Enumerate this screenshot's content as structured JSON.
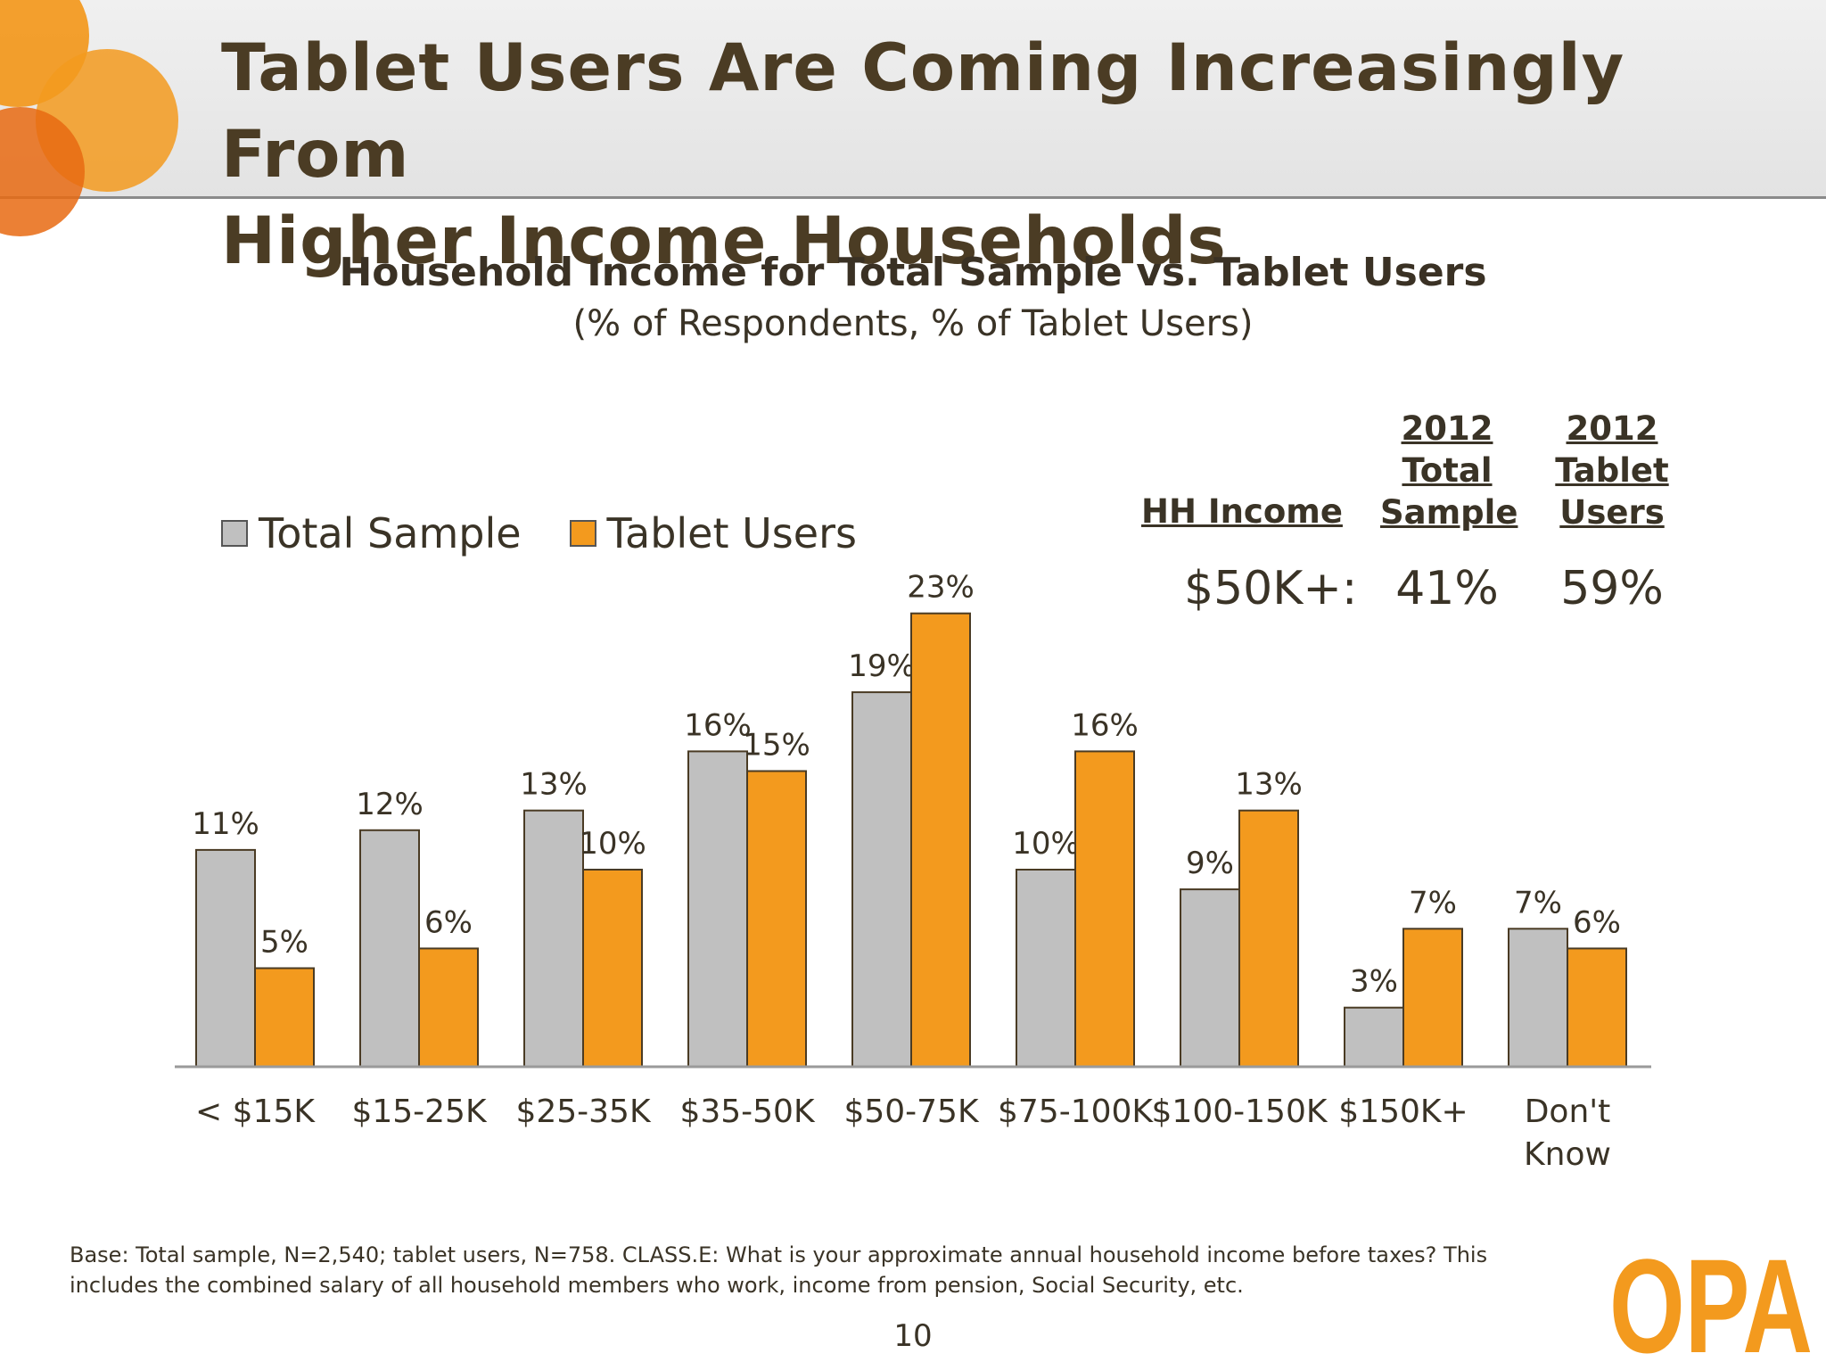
{
  "slide": {
    "title_line1": "Tablet Users Are Coming Increasingly From",
    "title_line2": "Higher Income Households",
    "page_number": "10"
  },
  "hh_table": {
    "header_label": "HH Income",
    "col_total": [
      "2012",
      "Total",
      "Sample"
    ],
    "col_tablet": [
      "2012",
      "Tablet",
      "Users"
    ],
    "row_label": "$50K+:",
    "row_total": "41%",
    "row_tablet": "59%"
  },
  "footnote": {
    "line1": "Base:  Total sample, N=2,540; tablet users, N=758.  CLASS.E:  What is your approximate annual household income before taxes?  This",
    "line2": "includes the combined salary of all household members who work, income from pension, Social Security, etc."
  },
  "logo": {
    "text": "OPA"
  },
  "colors": {
    "total_sample": "#c0c0c0",
    "tablet_users": "#f39a1e",
    "bar_outline": "#4a3b24",
    "axis": "#9a9a9a"
  },
  "chart_data": {
    "type": "bar",
    "title": "Household Income for Total Sample vs. Tablet Users",
    "subtitle": "(% of Respondents, % of Tablet Users)",
    "categories": [
      "< $15K",
      "$15-25K",
      "$25-35K",
      "$35-50K",
      "$50-75K",
      "$75-100K",
      "$100-150K",
      "$150K+",
      "Don't Know"
    ],
    "series": [
      {
        "name": "Total Sample",
        "values": [
          11,
          12,
          13,
          16,
          19,
          10,
          9,
          3,
          7
        ],
        "labels": [
          "11%",
          "12%",
          "13%",
          "16%",
          "19%",
          "10%",
          "9%",
          "3%",
          "7%"
        ]
      },
      {
        "name": "Tablet Users",
        "values": [
          5,
          6,
          10,
          15,
          23,
          16,
          13,
          7,
          6
        ],
        "labels": [
          "5%",
          "6%",
          "10%",
          "15%",
          "23%",
          "16%",
          "13%",
          "7%",
          "6%"
        ]
      }
    ],
    "ylim": [
      0,
      25
    ],
    "grid": false,
    "legend": "top-left"
  }
}
